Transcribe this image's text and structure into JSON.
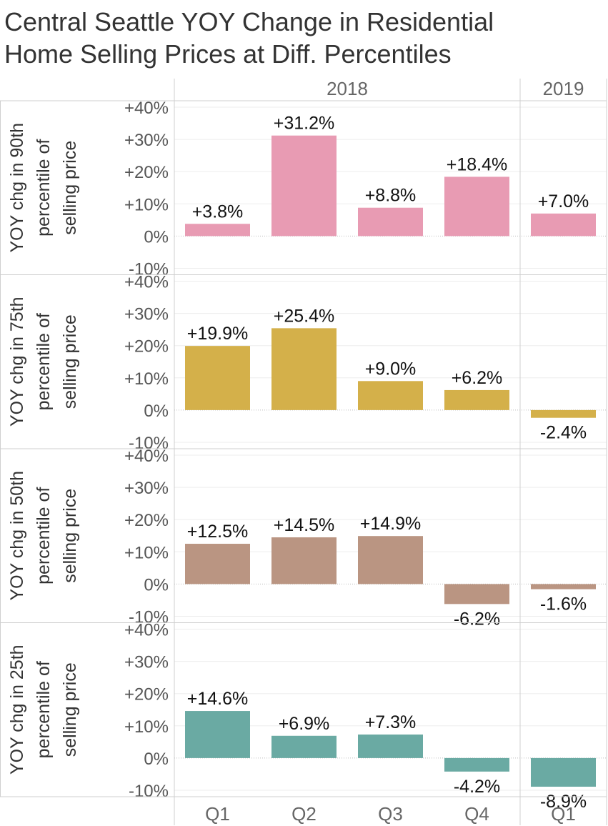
{
  "title_lines": [
    "Central Seattle YOY Change in Residential",
    "Home Selling Prices at Diff. Percentiles"
  ],
  "chart_data": {
    "type": "bar",
    "title": "Central Seattle YOY Change in Residential Home Selling Prices at Diff. Percentiles",
    "years": [
      {
        "label": "2018",
        "quarters": [
          "Q1",
          "Q2",
          "Q3",
          "Q4"
        ]
      },
      {
        "label": "2019",
        "quarters": [
          "Q1"
        ]
      }
    ],
    "categories": [
      "2018 Q1",
      "2018 Q2",
      "2018 Q3",
      "2018 Q4",
      "2019 Q1"
    ],
    "y_ticks": [
      "+40%",
      "+30%",
      "+20%",
      "+10%",
      "0%",
      "-10%"
    ],
    "tick_values": [
      40,
      30,
      20,
      10,
      0,
      -10
    ],
    "ylim": [
      -12,
      42
    ],
    "series": [
      {
        "name": "YOY chg in 90th percentile of selling price",
        "label_lines": [
          "YOY chg in 90th",
          "percentile of",
          "selling price"
        ],
        "color": "#E89BB3",
        "values": [
          3.8,
          31.2,
          8.8,
          18.4,
          7.0
        ],
        "labels": [
          "+3.8%",
          "+31.2%",
          "+8.8%",
          "+18.4%",
          "+7.0%"
        ]
      },
      {
        "name": "YOY chg in 75th percentile of selling price",
        "label_lines": [
          "YOY chg in 75th",
          "percentile of",
          "selling price"
        ],
        "color": "#D4B04A",
        "values": [
          19.9,
          25.4,
          9.0,
          6.2,
          -2.4
        ],
        "labels": [
          "+19.9%",
          "+25.4%",
          "+9.0%",
          "+6.2%",
          "-2.4%"
        ]
      },
      {
        "name": "YOY chg in 50th percentile of selling price",
        "label_lines": [
          "YOY chg in 50th",
          "percentile of",
          "selling price"
        ],
        "color": "#BA9582",
        "values": [
          12.5,
          14.5,
          14.9,
          -6.2,
          -1.6
        ],
        "labels": [
          "+12.5%",
          "+14.5%",
          "+14.9%",
          "-6.2%",
          "-1.6%"
        ]
      },
      {
        "name": "YOY chg in 25th percentile of selling price",
        "label_lines": [
          "YOY chg in 25th",
          "percentile of",
          "selling price"
        ],
        "color": "#6AAAA3",
        "values": [
          14.6,
          6.9,
          7.3,
          -4.2,
          -8.9
        ],
        "labels": [
          "+14.6%",
          "+6.9%",
          "+7.3%",
          "-4.2%",
          "-8.9%"
        ]
      }
    ]
  }
}
